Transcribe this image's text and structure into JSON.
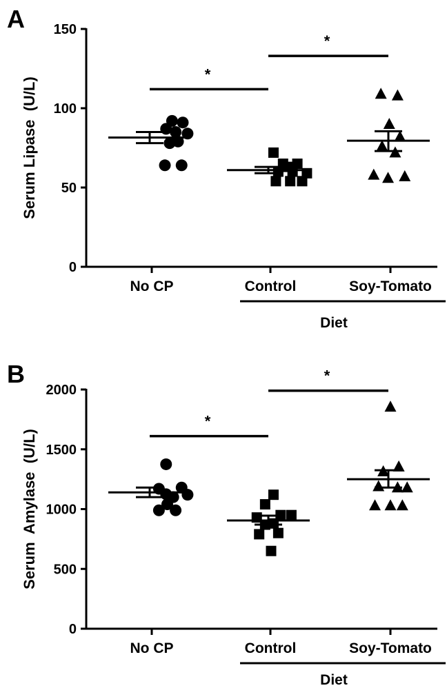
{
  "chart_data": [
    {
      "type": "scatter",
      "panel": "A",
      "title": "",
      "xlabel": "Diet",
      "ylabel": "Serum Lipase  (U/L)",
      "ylim": [
        0,
        150
      ],
      "yticks": [
        0,
        50,
        100,
        150
      ],
      "categories": [
        "No CP",
        "Control",
        "Soy-Tomato"
      ],
      "diet_groups": [
        "Control",
        "Soy-Tomato"
      ],
      "markers": [
        "circle",
        "square",
        "triangle"
      ],
      "series": [
        {
          "category": "No CP",
          "mean": 81.5,
          "sem": [
            78,
            85
          ],
          "points": [
            [
              0.17,
              92
            ],
            [
              0.26,
              91
            ],
            [
              0.12,
              87
            ],
            [
              0.2,
              85
            ],
            [
              0.3,
              84
            ],
            [
              0.22,
              79
            ],
            [
              0.15,
              78
            ],
            [
              0.11,
              64
            ],
            [
              0.25,
              64
            ]
          ]
        },
        {
          "category": "Control",
          "mean": 61,
          "sem": [
            59,
            63
          ],
          "points": [
            [
              1.02,
              72
            ],
            [
              1.1,
              65
            ],
            [
              1.22,
              65
            ],
            [
              1.14,
              63
            ],
            [
              1.06,
              60
            ],
            [
              1.18,
              60
            ],
            [
              1.3,
              59
            ],
            [
              1.04,
              54
            ],
            [
              1.16,
              54
            ],
            [
              1.26,
              54
            ]
          ]
        },
        {
          "category": "Soy-Tomato",
          "mean": 79.5,
          "sem": [
            73,
            85.5
          ],
          "points": [
            [
              1.92,
              109
            ],
            [
              2.06,
              108
            ],
            [
              1.99,
              90
            ],
            [
              2.08,
              82
            ],
            [
              1.93,
              76
            ],
            [
              2.04,
              72
            ],
            [
              1.86,
              58
            ],
            [
              1.98,
              56
            ],
            [
              2.12,
              57
            ]
          ]
        }
      ],
      "significance": [
        {
          "from": "No CP",
          "to": "Control",
          "label": "*",
          "y": 112
        },
        {
          "from": "Control",
          "to": "Soy-Tomato",
          "label": "*",
          "y": 133
        }
      ]
    },
    {
      "type": "scatter",
      "panel": "B",
      "title": "",
      "xlabel": "Diet",
      "ylabel": "Serum  Amylase  (U/L)",
      "ylim": [
        0,
        2000
      ],
      "yticks": [
        0,
        500,
        1000,
        1500,
        2000
      ],
      "categories": [
        "No CP",
        "Control",
        "Soy-Tomato"
      ],
      "diet_groups": [
        "Control",
        "Soy-Tomato"
      ],
      "markers": [
        "circle",
        "square",
        "triangle"
      ],
      "series": [
        {
          "category": "No CP",
          "mean": 1140,
          "sem": [
            1100,
            1180
          ],
          "points": [
            [
              0.12,
              1375
            ],
            [
              0.25,
              1180
            ],
            [
              0.06,
              1170
            ],
            [
              0.12,
              1125
            ],
            [
              0.18,
              1100
            ],
            [
              0.3,
              1120
            ],
            [
              0.06,
              990
            ],
            [
              0.13,
              1040
            ],
            [
              0.2,
              990
            ]
          ]
        },
        {
          "category": "Control",
          "mean": 905,
          "sem": [
            870,
            945
          ],
          "points": [
            [
              1.02,
              1120
            ],
            [
              0.95,
              1040
            ],
            [
              1.08,
              950
            ],
            [
              1.17,
              950
            ],
            [
              0.88,
              930
            ],
            [
              1.02,
              880
            ],
            [
              0.95,
              870
            ],
            [
              0.9,
              790
            ],
            [
              1.06,
              800
            ],
            [
              1.0,
              650
            ]
          ]
        },
        {
          "category": "Soy-Tomato",
          "mean": 1250,
          "sem": [
            1180,
            1325
          ],
          "points": [
            [
              2.0,
              1855
            ],
            [
              2.07,
              1355
            ],
            [
              1.94,
              1315
            ],
            [
              1.9,
              1190
            ],
            [
              2.06,
              1180
            ],
            [
              2.14,
              1180
            ],
            [
              1.87,
              1030
            ],
            [
              2.0,
              1030
            ],
            [
              2.1,
              1030
            ]
          ]
        }
      ],
      "significance": [
        {
          "from": "No CP",
          "to": "Control",
          "label": "*",
          "y": 1610
        },
        {
          "from": "Control",
          "to": "Soy-Tomato",
          "label": "*",
          "y": 1990
        }
      ]
    }
  ]
}
